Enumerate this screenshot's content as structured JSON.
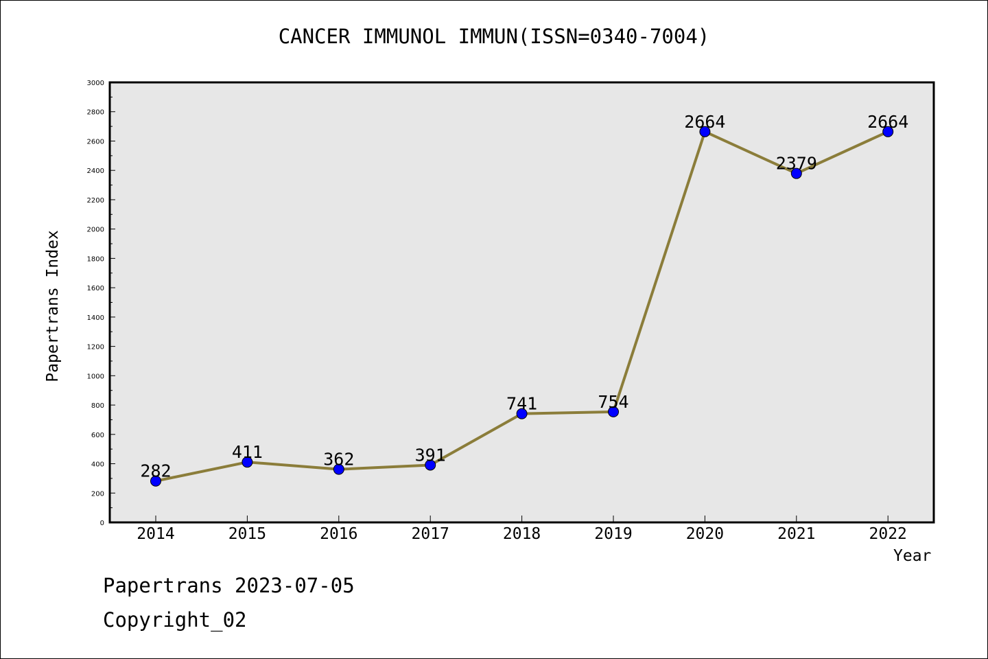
{
  "title": "CANCER IMMUNOL IMMUN(ISSN=0340-7004)",
  "footer": {
    "line1": "Papertrans 2023-07-05",
    "line2": "Copyright_02"
  },
  "chart_data": {
    "type": "line",
    "title": "CANCER IMMUNOL IMMUN(ISSN=0340-7004)",
    "xlabel": "Year",
    "ylabel": "Papertrans Index",
    "categories": [
      "2014",
      "2015",
      "2016",
      "2017",
      "2018",
      "2019",
      "2020",
      "2021",
      "2022"
    ],
    "series": [
      {
        "values": [
          282,
          411,
          362,
          391,
          741,
          754,
          2664,
          2379,
          2664
        ]
      }
    ],
    "ylim": [
      0,
      3000
    ],
    "yticks": [
      0,
      200,
      400,
      600,
      800,
      1000,
      1200,
      1400,
      1600,
      1800,
      2000,
      2200,
      2400,
      2600,
      2800,
      3000
    ],
    "grid": false,
    "data_labels": true,
    "colors": {
      "line": "#8B7D3A",
      "marker": "#0000FF",
      "plot_background": "#E7E7E7"
    }
  }
}
